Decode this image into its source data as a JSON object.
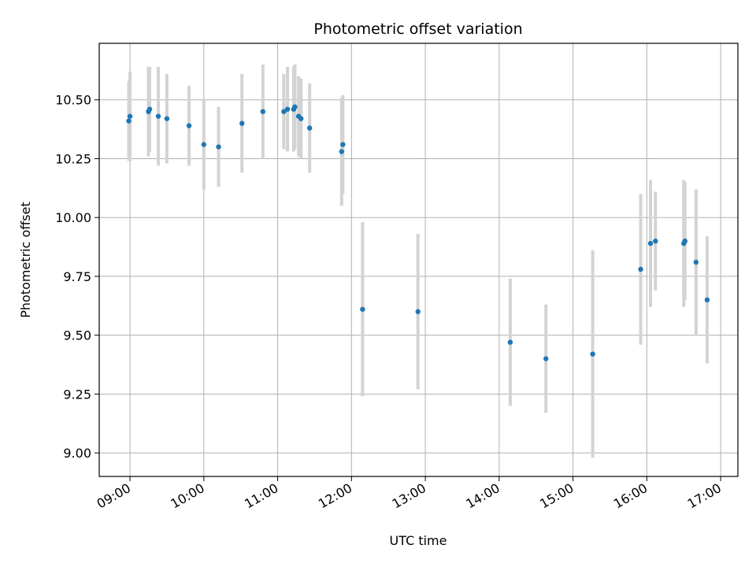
{
  "chart_data": {
    "type": "scatter",
    "title": "Photometric offset variation",
    "xlabel": "UTC time",
    "ylabel": "Photometric offset",
    "xlim": [
      "08:35",
      "17:14"
    ],
    "ylim": [
      8.9,
      10.74
    ],
    "grid": true,
    "x_ticks": [
      "09:00",
      "10:00",
      "11:00",
      "12:00",
      "13:00",
      "14:00",
      "15:00",
      "16:00",
      "17:00"
    ],
    "y_ticks": [
      "9.00",
      "9.25",
      "9.50",
      "9.75",
      "10.00",
      "10.25",
      "10.50"
    ],
    "colors": {
      "point": "#1f77b4",
      "errorbar": "#d3d3d3",
      "grid": "#b0b0b0"
    },
    "series": [
      {
        "points": [
          {
            "t": "08:59",
            "y": 10.41,
            "err": 0.17
          },
          {
            "t": "09:00",
            "y": 10.43,
            "err": 0.19
          },
          {
            "t": "09:15",
            "y": 10.45,
            "err": 0.19
          },
          {
            "t": "09:16",
            "y": 10.46,
            "err": 0.18
          },
          {
            "t": "09:23",
            "y": 10.43,
            "err": 0.21
          },
          {
            "t": "09:30",
            "y": 10.42,
            "err": 0.19
          },
          {
            "t": "09:48",
            "y": 10.39,
            "err": 0.17
          },
          {
            "t": "10:00",
            "y": 10.31,
            "err": 0.19
          },
          {
            "t": "10:12",
            "y": 10.3,
            "err": 0.17
          },
          {
            "t": "10:31",
            "y": 10.4,
            "err": 0.21
          },
          {
            "t": "10:48",
            "y": 10.45,
            "err": 0.2
          },
          {
            "t": "11:05",
            "y": 10.45,
            "err": 0.16
          },
          {
            "t": "11:08",
            "y": 10.46,
            "err": 0.18
          },
          {
            "t": "11:13",
            "y": 10.46,
            "err": 0.18
          },
          {
            "t": "11:14",
            "y": 10.47,
            "err": 0.18
          },
          {
            "t": "11:17",
            "y": 10.43,
            "err": 0.17
          },
          {
            "t": "11:19",
            "y": 10.42,
            "err": 0.17
          },
          {
            "t": "11:26",
            "y": 10.38,
            "err": 0.19
          },
          {
            "t": "11:52",
            "y": 10.28,
            "err": 0.23
          },
          {
            "t": "11:53",
            "y": 10.31,
            "err": 0.21
          },
          {
            "t": "12:09",
            "y": 9.61,
            "err": 0.37
          },
          {
            "t": "12:54",
            "y": 9.6,
            "err": 0.33
          },
          {
            "t": "14:09",
            "y": 9.47,
            "err": 0.27
          },
          {
            "t": "14:38",
            "y": 9.4,
            "err": 0.23
          },
          {
            "t": "15:16",
            "y": 9.42,
            "err": 0.44
          },
          {
            "t": "15:55",
            "y": 9.78,
            "err": 0.32
          },
          {
            "t": "16:03",
            "y": 9.89,
            "err": 0.27
          },
          {
            "t": "16:07",
            "y": 9.9,
            "err": 0.21
          },
          {
            "t": "16:30",
            "y": 9.89,
            "err": 0.27
          },
          {
            "t": "16:31",
            "y": 9.9,
            "err": 0.25
          },
          {
            "t": "16:40",
            "y": 9.81,
            "err": 0.31
          },
          {
            "t": "16:49",
            "y": 9.65,
            "err": 0.27
          }
        ]
      }
    ]
  }
}
